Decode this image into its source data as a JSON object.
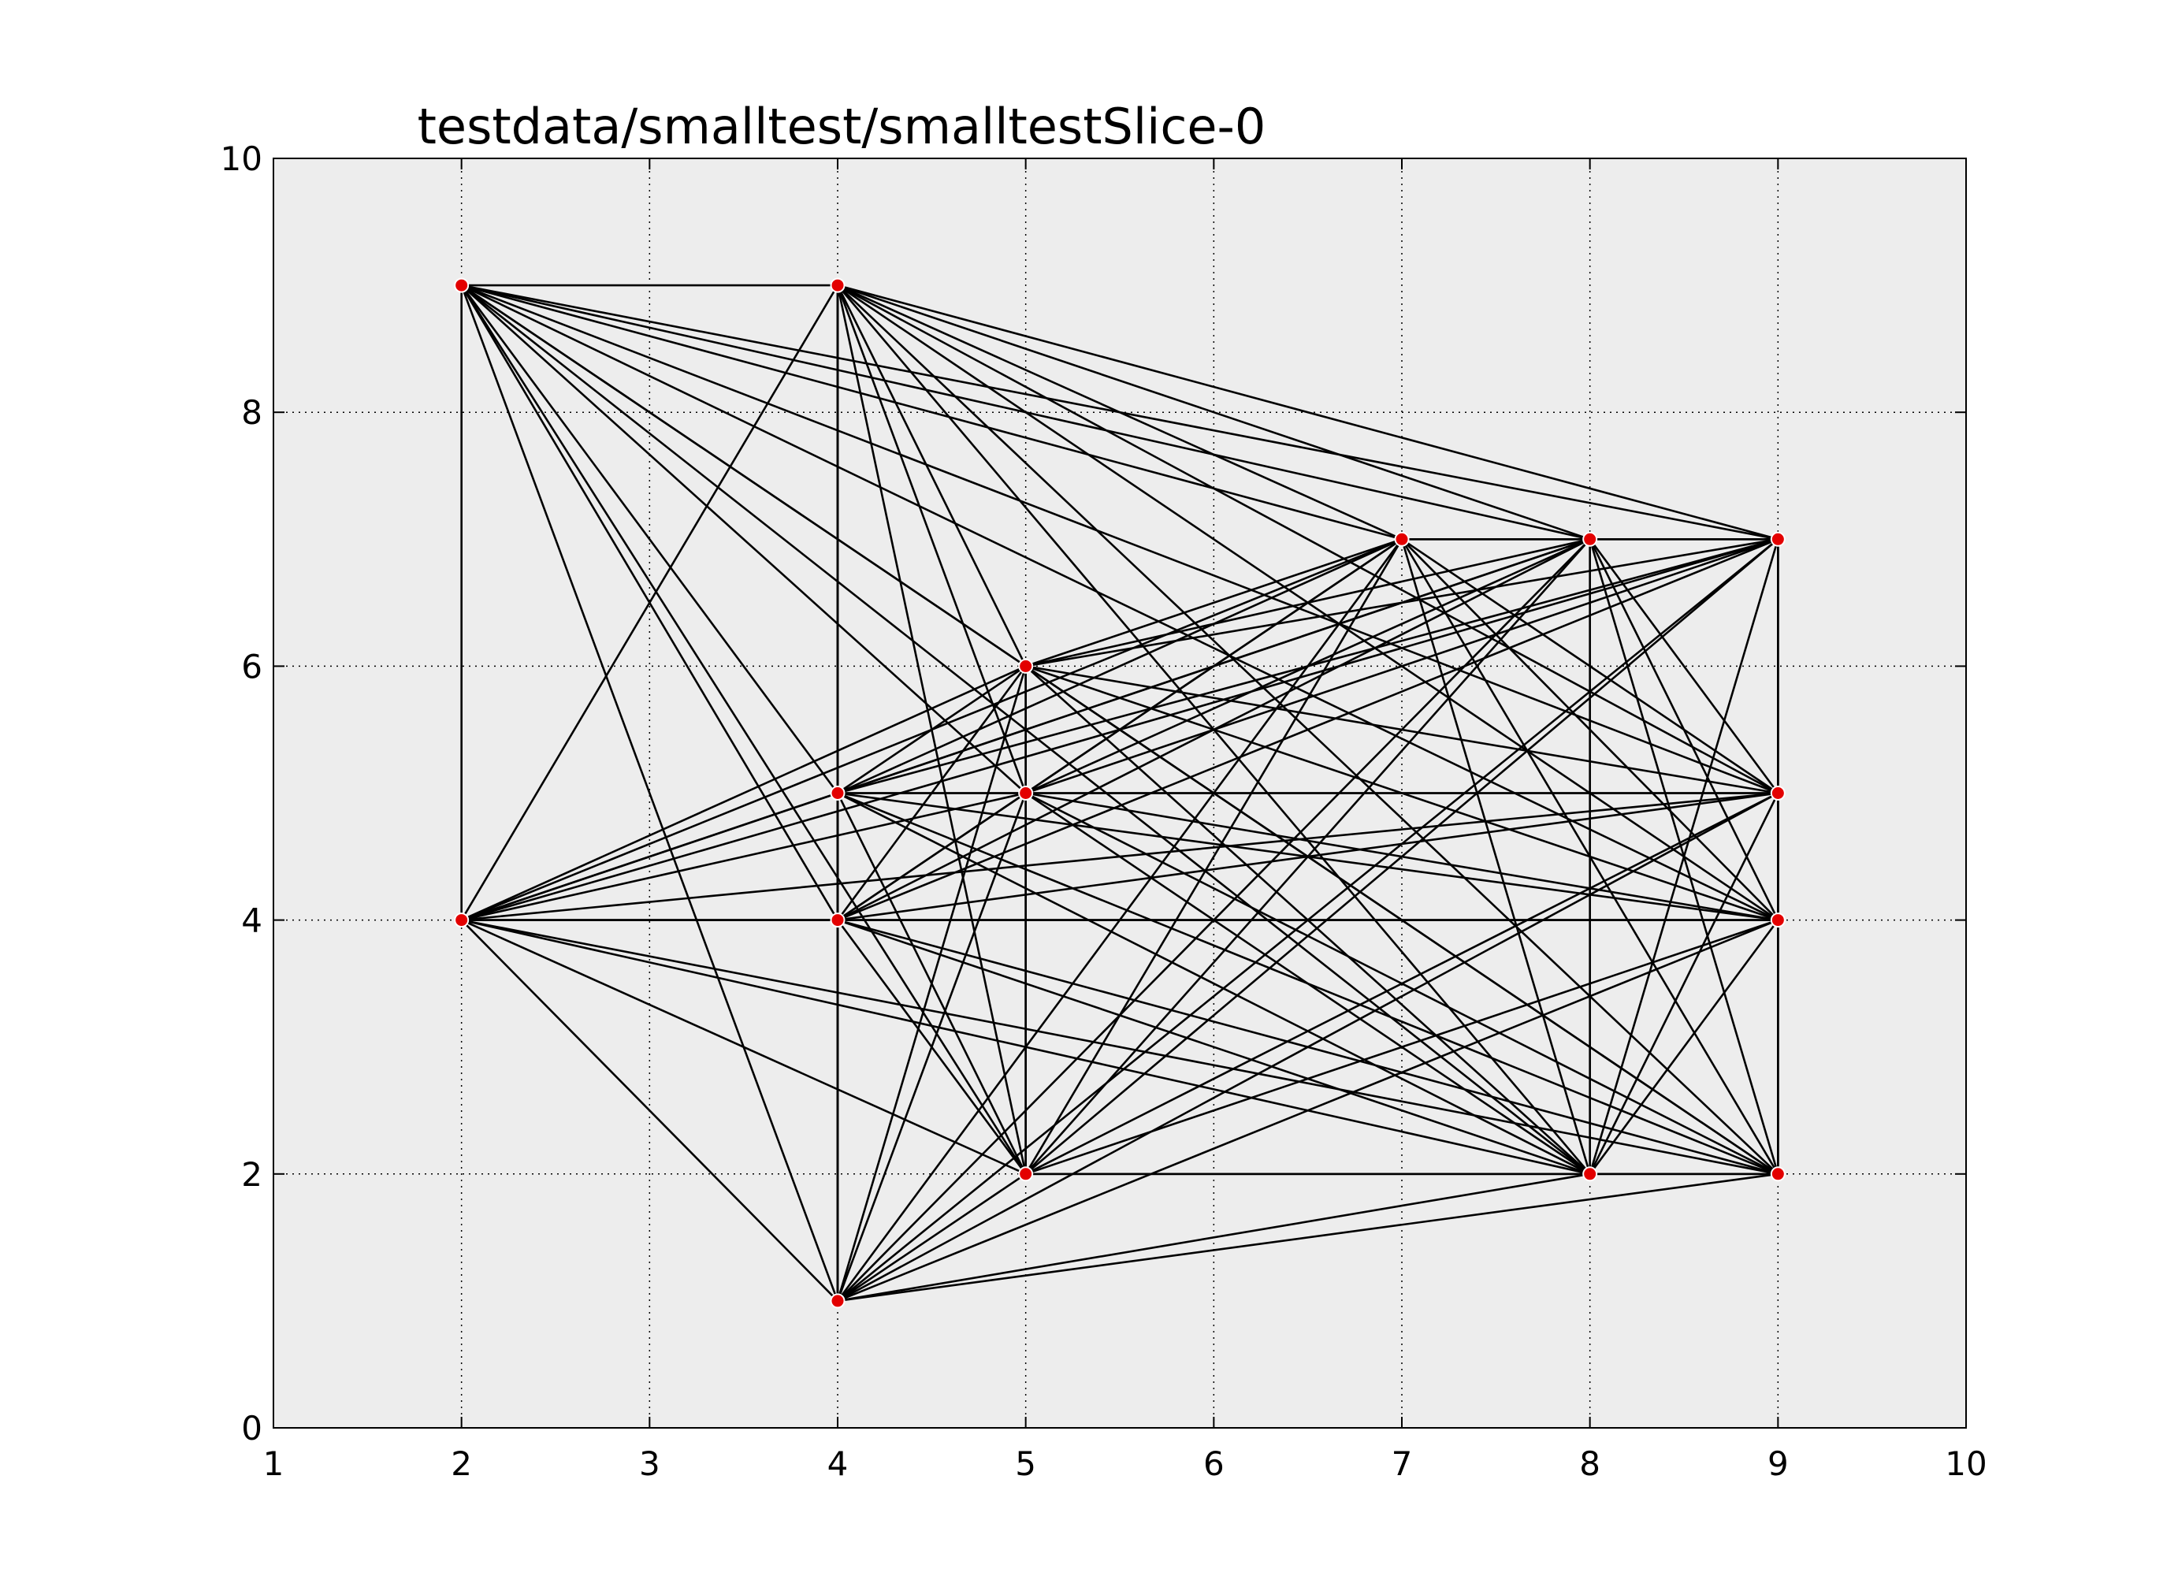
{
  "chart_data": {
    "type": "scatter",
    "title": "testdata/smalltest/smalltestSlice-0",
    "xlabel": "",
    "ylabel": "",
    "xlim": [
      1,
      10
    ],
    "ylim": [
      0,
      10
    ],
    "x_ticks": [
      1,
      2,
      3,
      4,
      5,
      6,
      7,
      8,
      9,
      10
    ],
    "y_ticks": [
      0,
      2,
      4,
      6,
      8,
      10
    ],
    "grid": true,
    "background_color": "#ededed",
    "point_color": "#e30000",
    "edge_color": "#000000",
    "points": [
      {
        "x": 2,
        "y": 9
      },
      {
        "x": 4,
        "y": 9
      },
      {
        "x": 7,
        "y": 7
      },
      {
        "x": 8,
        "y": 7
      },
      {
        "x": 9,
        "y": 7
      },
      {
        "x": 5,
        "y": 6
      },
      {
        "x": 4,
        "y": 5
      },
      {
        "x": 5,
        "y": 5
      },
      {
        "x": 9,
        "y": 5
      },
      {
        "x": 2,
        "y": 4
      },
      {
        "x": 4,
        "y": 4
      },
      {
        "x": 9,
        "y": 4
      },
      {
        "x": 5,
        "y": 2
      },
      {
        "x": 8,
        "y": 2
      },
      {
        "x": 9,
        "y": 2
      },
      {
        "x": 4,
        "y": 1
      }
    ],
    "edges": [
      [
        0,
        1
      ],
      [
        0,
        2
      ],
      [
        0,
        3
      ],
      [
        0,
        4
      ],
      [
        0,
        5
      ],
      [
        0,
        6
      ],
      [
        0,
        7
      ],
      [
        0,
        8
      ],
      [
        0,
        9
      ],
      [
        0,
        10
      ],
      [
        0,
        11
      ],
      [
        0,
        12
      ],
      [
        0,
        13
      ],
      [
        0,
        14
      ],
      [
        0,
        15
      ],
      [
        1,
        2
      ],
      [
        1,
        3
      ],
      [
        1,
        4
      ],
      [
        1,
        5
      ],
      [
        1,
        6
      ],
      [
        1,
        7
      ],
      [
        1,
        8
      ],
      [
        1,
        9
      ],
      [
        1,
        10
      ],
      [
        1,
        11
      ],
      [
        1,
        12
      ],
      [
        1,
        13
      ],
      [
        1,
        14
      ],
      [
        1,
        15
      ],
      [
        2,
        3
      ],
      [
        2,
        4
      ],
      [
        2,
        5
      ],
      [
        2,
        6
      ],
      [
        2,
        7
      ],
      [
        2,
        8
      ],
      [
        2,
        9
      ],
      [
        2,
        10
      ],
      [
        2,
        11
      ],
      [
        2,
        12
      ],
      [
        2,
        13
      ],
      [
        2,
        14
      ],
      [
        2,
        15
      ],
      [
        3,
        4
      ],
      [
        3,
        5
      ],
      [
        3,
        6
      ],
      [
        3,
        7
      ],
      [
        3,
        8
      ],
      [
        3,
        9
      ],
      [
        3,
        10
      ],
      [
        3,
        11
      ],
      [
        3,
        12
      ],
      [
        3,
        13
      ],
      [
        3,
        14
      ],
      [
        3,
        15
      ],
      [
        4,
        5
      ],
      [
        4,
        6
      ],
      [
        4,
        7
      ],
      [
        4,
        8
      ],
      [
        4,
        9
      ],
      [
        4,
        10
      ],
      [
        4,
        11
      ],
      [
        4,
        12
      ],
      [
        4,
        13
      ],
      [
        4,
        14
      ],
      [
        4,
        15
      ],
      [
        5,
        6
      ],
      [
        5,
        7
      ],
      [
        5,
        8
      ],
      [
        5,
        9
      ],
      [
        5,
        10
      ],
      [
        5,
        11
      ],
      [
        5,
        12
      ],
      [
        5,
        13
      ],
      [
        5,
        14
      ],
      [
        5,
        15
      ],
      [
        6,
        7
      ],
      [
        6,
        8
      ],
      [
        6,
        9
      ],
      [
        6,
        10
      ],
      [
        6,
        11
      ],
      [
        6,
        12
      ],
      [
        6,
        13
      ],
      [
        6,
        14
      ],
      [
        6,
        15
      ],
      [
        7,
        8
      ],
      [
        7,
        9
      ],
      [
        7,
        10
      ],
      [
        7,
        11
      ],
      [
        7,
        12
      ],
      [
        7,
        13
      ],
      [
        7,
        14
      ],
      [
        7,
        15
      ],
      [
        8,
        9
      ],
      [
        8,
        10
      ],
      [
        8,
        11
      ],
      [
        8,
        12
      ],
      [
        8,
        13
      ],
      [
        8,
        14
      ],
      [
        8,
        15
      ],
      [
        9,
        10
      ],
      [
        9,
        11
      ],
      [
        9,
        12
      ],
      [
        9,
        13
      ],
      [
        9,
        14
      ],
      [
        9,
        15
      ],
      [
        10,
        11
      ],
      [
        10,
        12
      ],
      [
        10,
        13
      ],
      [
        10,
        14
      ],
      [
        10,
        15
      ],
      [
        11,
        12
      ],
      [
        11,
        13
      ],
      [
        11,
        14
      ],
      [
        11,
        15
      ],
      [
        12,
        13
      ],
      [
        12,
        14
      ],
      [
        12,
        15
      ],
      [
        13,
        14
      ],
      [
        13,
        15
      ],
      [
        14,
        15
      ]
    ]
  }
}
